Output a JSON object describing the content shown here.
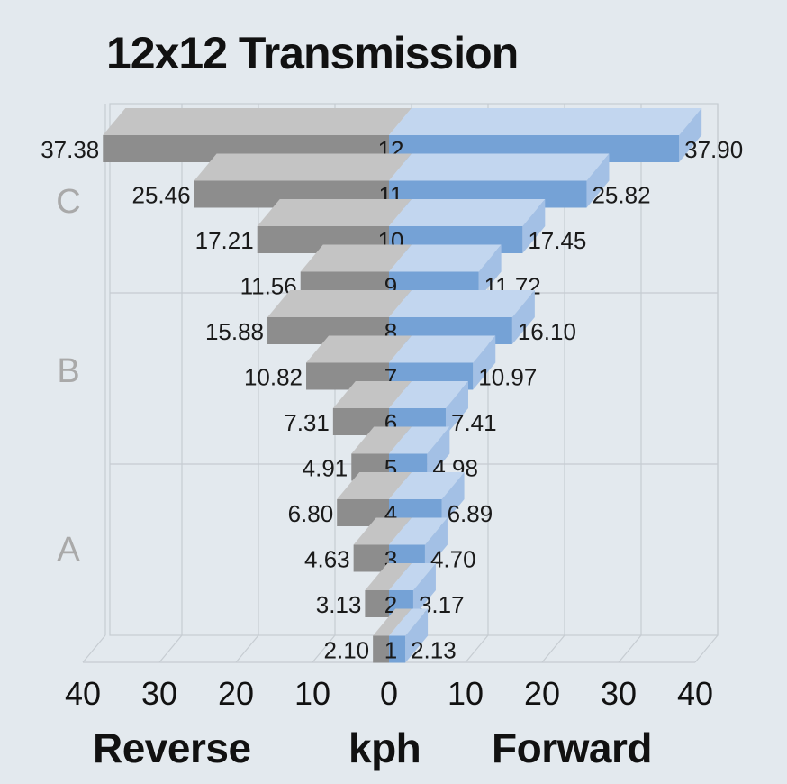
{
  "title": "12x12 Transmission",
  "footer": {
    "left": "Reverse",
    "center": "kph",
    "right": "Forward"
  },
  "colors": {
    "background": "#e3e9ee",
    "reverse_front": "#8d8d8d",
    "reverse_top": "#c4c4c4",
    "forward_front": "#75a2d6",
    "forward_top": "#c2d6ef",
    "forward_side": "#a3c0e5",
    "grid": "#c6ccd2",
    "range_label": "#a9a9a9"
  },
  "chart_data": {
    "type": "bar",
    "orientation": "horizontal-diverging-3d",
    "categories": [
      "1",
      "2",
      "3",
      "4",
      "5",
      "6",
      "7",
      "8",
      "9",
      "10",
      "11",
      "12"
    ],
    "series": [
      {
        "name": "Reverse",
        "values": [
          2.1,
          3.13,
          4.63,
          6.8,
          4.91,
          7.31,
          10.82,
          15.88,
          11.56,
          17.21,
          25.46,
          37.38
        ],
        "labels": [
          "2.10",
          "3.13",
          "4.63",
          "6.80",
          "4.91",
          "7.31",
          "10.82",
          "15.88",
          "11.56",
          "17.21",
          "25.46",
          "37.38"
        ]
      },
      {
        "name": "Forward",
        "values": [
          2.13,
          3.17,
          4.7,
          6.89,
          4.98,
          7.41,
          10.97,
          16.1,
          11.72,
          17.45,
          25.82,
          37.9
        ],
        "labels": [
          "2.13",
          "3.17",
          "4.70",
          "6.89",
          "4.98",
          "7.41",
          "10.97",
          "16.10",
          "11.72",
          "17.45",
          "25.82",
          "37.90"
        ]
      }
    ],
    "ranges": [
      {
        "label": "A",
        "gears": [
          "1",
          "2",
          "3",
          "4"
        ]
      },
      {
        "label": "B",
        "gears": [
          "5",
          "6",
          "7",
          "8"
        ]
      },
      {
        "label": "C",
        "gears": [
          "9",
          "10",
          "11",
          "12"
        ]
      }
    ],
    "x_ticks": [
      "40",
      "30",
      "20",
      "10",
      "0",
      "10",
      "20",
      "30",
      "40"
    ],
    "xlim": [
      -40,
      40
    ],
    "xlabel": "kph",
    "grid": true,
    "legend": "none"
  }
}
